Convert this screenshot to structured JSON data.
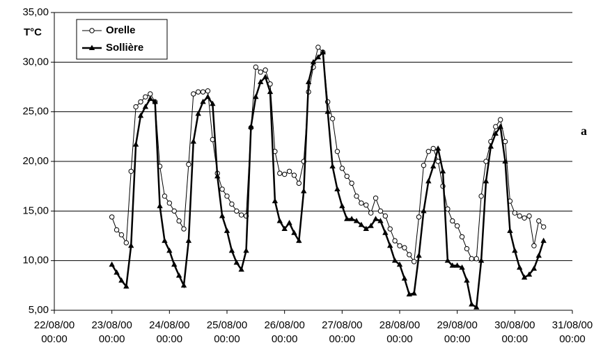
{
  "chart_data": {
    "type": "line",
    "ylabel": "T°C",
    "annotation": "a",
    "x": [
      24,
      26,
      28,
      30,
      32,
      34,
      36,
      38,
      40,
      42,
      44,
      46,
      48,
      50,
      52,
      54,
      56,
      58,
      60,
      62,
      64,
      66,
      68,
      70,
      72,
      74,
      76,
      78,
      80,
      82,
      84,
      86,
      88,
      90,
      92,
      94,
      96,
      98,
      100,
      102,
      104,
      106,
      108,
      110,
      112,
      114,
      116,
      118,
      120,
      122,
      124,
      126,
      128,
      130,
      132,
      134,
      136,
      138,
      140,
      142,
      144,
      146,
      148,
      150,
      152,
      154,
      156,
      158,
      160,
      162,
      164,
      166,
      168,
      170,
      172,
      174,
      176,
      178,
      180,
      182,
      184,
      186,
      188,
      190,
      192,
      194,
      196,
      198,
      200,
      202,
      204
    ],
    "series": [
      {
        "name": "Orelle",
        "color": "#000000",
        "marker": "circle",
        "line_width": 1,
        "values": [
          14.4,
          13.1,
          12.6,
          11.8,
          19.0,
          25.5,
          26.0,
          26.5,
          26.8,
          26.0,
          19.5,
          16.5,
          15.8,
          15.0,
          14.0,
          13.2,
          19.7,
          26.8,
          27.0,
          27.0,
          27.1,
          22.2,
          18.8,
          17.2,
          16.5,
          15.7,
          15.0,
          14.6,
          14.5,
          23.4,
          29.5,
          29.0,
          29.2,
          27.8,
          21.0,
          18.8,
          18.7,
          19.0,
          18.6,
          17.8,
          20.0,
          27.0,
          29.5,
          31.5,
          31.0,
          26.0,
          24.3,
          21.0,
          19.3,
          18.5,
          17.8,
          16.5,
          15.8,
          15.6,
          14.8,
          16.3,
          15.0,
          14.5,
          13.2,
          12.0,
          11.5,
          11.3,
          10.6,
          9.9,
          14.4,
          19.6,
          21.0,
          21.3,
          20.0,
          17.5,
          15.2,
          14.0,
          13.5,
          12.4,
          11.2,
          10.2,
          10.2,
          16.5,
          20.0,
          22.0,
          23.5,
          24.2,
          22.0,
          16.0,
          14.8,
          14.5,
          14.3,
          14.5,
          11.5,
          14.0,
          13.4
        ]
      },
      {
        "name": "Sollière",
        "color": "#000000",
        "marker": "triangle",
        "line_width": 2.5,
        "values": [
          9.6,
          8.8,
          8.0,
          7.4,
          11.5,
          21.7,
          24.6,
          25.5,
          26.3,
          26.0,
          15.5,
          12.0,
          11.0,
          9.6,
          8.5,
          7.5,
          12.0,
          22.0,
          24.8,
          26.0,
          26.5,
          25.8,
          18.5,
          14.5,
          13.0,
          11.0,
          9.8,
          9.1,
          11.0,
          23.5,
          26.5,
          28.0,
          28.5,
          27.0,
          16.0,
          14.0,
          13.2,
          13.8,
          12.8,
          12.0,
          17.0,
          28.0,
          30.0,
          30.5,
          31.0,
          25.0,
          19.5,
          17.2,
          15.5,
          14.2,
          14.2,
          14.0,
          13.6,
          13.2,
          13.5,
          14.2,
          14.0,
          12.8,
          11.5,
          10.0,
          9.6,
          8.2,
          6.6,
          6.7,
          10.5,
          15.0,
          18.0,
          19.5,
          21.3,
          19.0,
          10.0,
          9.5,
          9.5,
          9.3,
          8.0,
          5.6,
          5.3,
          10.0,
          18.0,
          21.5,
          22.8,
          23.5,
          20.0,
          13.0,
          11.0,
          9.3,
          8.3,
          8.6,
          9.2,
          10.5,
          12.0
        ]
      }
    ],
    "xlim": [
      0,
      216
    ],
    "xticks": [
      {
        "value": 0,
        "label": [
          "22/08/00",
          "00:00"
        ]
      },
      {
        "value": 24,
        "label": [
          "23/08/00",
          "00:00"
        ]
      },
      {
        "value": 48,
        "label": [
          "24/08/00",
          "00:00"
        ]
      },
      {
        "value": 72,
        "label": [
          "25/08/00",
          "00:00"
        ]
      },
      {
        "value": 96,
        "label": [
          "26/08/00",
          "00:00"
        ]
      },
      {
        "value": 120,
        "label": [
          "27/08/00",
          "00:00"
        ]
      },
      {
        "value": 144,
        "label": [
          "28/08/00",
          "00:00"
        ]
      },
      {
        "value": 168,
        "label": [
          "29/08/00",
          "00:00"
        ]
      },
      {
        "value": 192,
        "label": [
          "30/08/00",
          "00:00"
        ]
      },
      {
        "value": 216,
        "label": [
          "31/08/00",
          "00:00"
        ]
      }
    ],
    "ylim": [
      5,
      35
    ],
    "yticks": [
      {
        "value": 5,
        "label": "5,00"
      },
      {
        "value": 10,
        "label": "10,00"
      },
      {
        "value": 15,
        "label": "15,00"
      },
      {
        "value": 20,
        "label": "20,00"
      },
      {
        "value": 25,
        "label": "25,00"
      },
      {
        "value": 30,
        "label": "30,00"
      },
      {
        "value": 35,
        "label": "35,00"
      }
    ],
    "grid": true,
    "legend": "upper left"
  }
}
